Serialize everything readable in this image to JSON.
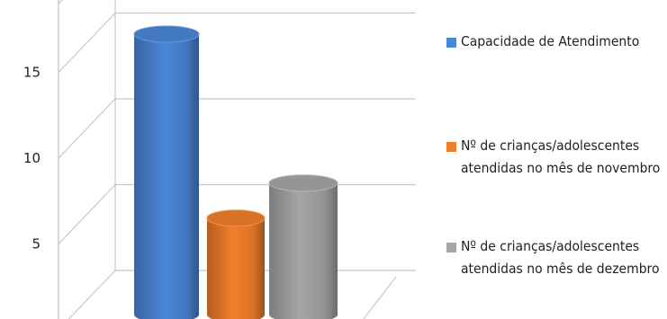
{
  "chart_data": {
    "type": "bar",
    "style": "3d-cylinder",
    "title": "",
    "xlabel": "",
    "ylabel": "",
    "ylim": [
      0,
      19
    ],
    "yticks": [
      5,
      10,
      15
    ],
    "grid": true,
    "legend_position": "right",
    "series": [
      {
        "name": "Capacidade de Atendimento",
        "value": 16,
        "color": "#4a86d6"
      },
      {
        "name": "Nº de crianças/adolescentes atendidas no mês de novembro",
        "value": 5.5,
        "color": "#f07f2a"
      },
      {
        "name": "Nº de crianças/adolescentes atendidas no mês de dezembro",
        "value": 7.5,
        "color": "#a6a6a6"
      }
    ]
  }
}
